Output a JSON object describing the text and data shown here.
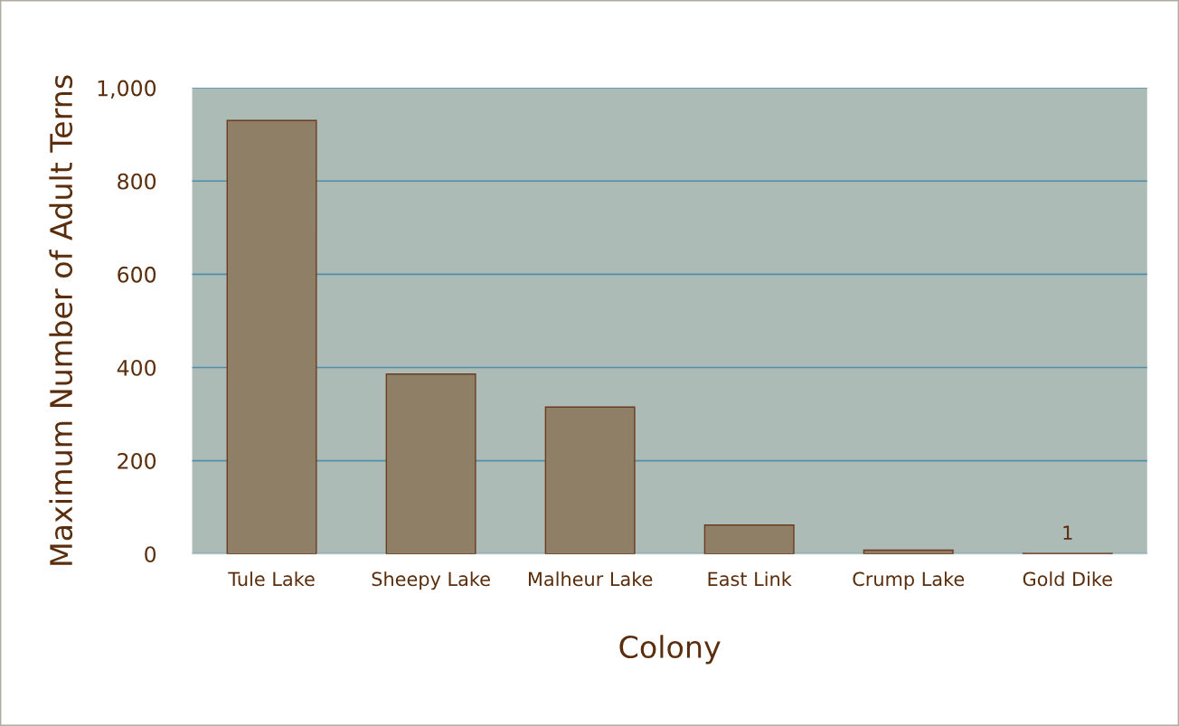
{
  "chart_data": {
    "type": "bar",
    "xlabel": "Colony",
    "ylabel": "Maximum Number of Adult Terns",
    "categories": [
      "Tule Lake",
      "Sheepy Lake",
      "Malheur Lake",
      "East Link",
      "Crump Lake",
      "Gold Dike"
    ],
    "values": [
      930,
      386,
      315,
      62,
      8,
      1
    ],
    "value_labels": [
      null,
      null,
      null,
      null,
      null,
      "1"
    ],
    "color": "#8f7f67",
    "ylim": [
      0,
      1000
    ],
    "yticks": [
      0,
      200,
      400,
      600,
      800,
      {
        "value": 1000,
        "label": "1,000"
      }
    ],
    "grid": "y"
  }
}
